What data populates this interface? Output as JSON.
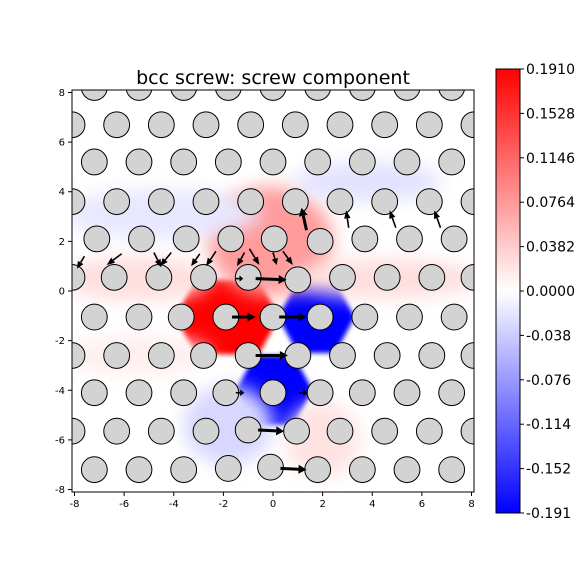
{
  "chart_data": {
    "type": "heatmap",
    "title": "bcc screw: screw component",
    "xlabel": "",
    "ylabel": "",
    "xlim": [
      -8.1,
      8.1
    ],
    "ylim": [
      -8.1,
      8.1
    ],
    "xticks": [
      -8,
      -6,
      -4,
      -2,
      0,
      2,
      4,
      6,
      8
    ],
    "yticks": [
      -8,
      -6,
      -4,
      -2,
      0,
      2,
      4,
      6,
      8
    ],
    "colorbar": {
      "colormap": "bwr",
      "vmin": -0.191,
      "vmax": 0.191,
      "tick_values": [
        0.191,
        0.1528,
        0.1146,
        0.0764,
        0.0382,
        0.0,
        -0.0382,
        -0.0764,
        -0.1146,
        -0.1528,
        -0.191
      ],
      "tick_labels": [
        "0.1910",
        "0.1528",
        "0.1146",
        "0.0764",
        "0.0382",
        "0.0000",
        "-0.038",
        "-0.076",
        "-0.114",
        "-0.152",
        "-0.191"
      ]
    },
    "colors": {
      "positive": "#ff0000",
      "negative": "#0000ff",
      "zero": "#ffffff",
      "atom_fill": "#d3d3d3",
      "atom_edge": "#000000"
    },
    "lattice": {
      "row_spacing": 1.56,
      "col_spacing": 1.8,
      "row_offset": 0.9,
      "atom_radius": 0.52,
      "rows_y": [
        8.2,
        6.7,
        5.2,
        3.6,
        2.1,
        0.55,
        -1.05,
        -2.6,
        -4.1,
        -5.65,
        -7.2
      ]
    },
    "atoms": [
      [
        -7.2,
        8.2
      ],
      [
        -5.4,
        8.2
      ],
      [
        -3.6,
        8.2
      ],
      [
        -1.8,
        8.2
      ],
      [
        0.0,
        8.2
      ],
      [
        1.8,
        8.2
      ],
      [
        3.6,
        8.2
      ],
      [
        5.4,
        8.2
      ],
      [
        7.2,
        8.2
      ],
      [
        -8.1,
        6.7
      ],
      [
        -6.3,
        6.7
      ],
      [
        -4.5,
        6.7
      ],
      [
        -2.7,
        6.7
      ],
      [
        -0.9,
        6.7
      ],
      [
        0.9,
        6.7
      ],
      [
        2.7,
        6.7
      ],
      [
        4.5,
        6.7
      ],
      [
        6.3,
        6.7
      ],
      [
        8.1,
        6.7
      ],
      [
        -7.2,
        5.2
      ],
      [
        -5.4,
        5.2
      ],
      [
        -3.6,
        5.2
      ],
      [
        -1.8,
        5.2
      ],
      [
        0.0,
        5.2
      ],
      [
        1.8,
        5.2
      ],
      [
        3.6,
        5.2
      ],
      [
        5.4,
        5.2
      ],
      [
        7.2,
        5.2
      ],
      [
        -8.1,
        3.6
      ],
      [
        -6.3,
        3.6
      ],
      [
        -4.5,
        3.6
      ],
      [
        -2.7,
        3.6
      ],
      [
        -0.9,
        3.6
      ],
      [
        0.9,
        3.6
      ],
      [
        2.7,
        3.6
      ],
      [
        4.5,
        3.6
      ],
      [
        6.3,
        3.6
      ],
      [
        8.1,
        3.6
      ],
      [
        -7.1,
        2.1
      ],
      [
        -5.3,
        2.1
      ],
      [
        -3.5,
        2.1
      ],
      [
        -1.7,
        2.1
      ],
      [
        0.05,
        2.1
      ],
      [
        1.9,
        2.0
      ],
      [
        3.7,
        2.1
      ],
      [
        5.5,
        2.1
      ],
      [
        7.3,
        2.1
      ],
      [
        -8.1,
        0.55
      ],
      [
        -6.4,
        0.55
      ],
      [
        -4.6,
        0.55
      ],
      [
        -2.8,
        0.55
      ],
      [
        -1.0,
        0.55
      ],
      [
        1.0,
        0.45
      ],
      [
        2.8,
        0.55
      ],
      [
        4.6,
        0.55
      ],
      [
        6.4,
        0.55
      ],
      [
        8.1,
        0.55
      ],
      [
        -7.2,
        -1.05
      ],
      [
        -5.4,
        -1.05
      ],
      [
        -3.7,
        -1.05
      ],
      [
        -1.9,
        -1.05
      ],
      [
        0.0,
        -1.05
      ],
      [
        1.9,
        -1.05
      ],
      [
        3.7,
        -1.05
      ],
      [
        5.5,
        -1.05
      ],
      [
        7.3,
        -1.05
      ],
      [
        -8.1,
        -2.6
      ],
      [
        -6.3,
        -2.6
      ],
      [
        -4.5,
        -2.6
      ],
      [
        -2.8,
        -2.6
      ],
      [
        -1.0,
        -2.6
      ],
      [
        1.0,
        -2.6
      ],
      [
        2.8,
        -2.6
      ],
      [
        4.6,
        -2.6
      ],
      [
        6.4,
        -2.6
      ],
      [
        8.1,
        -2.6
      ],
      [
        -7.2,
        -4.1
      ],
      [
        -5.4,
        -4.1
      ],
      [
        -3.6,
        -4.1
      ],
      [
        -1.9,
        -4.1
      ],
      [
        0.0,
        -4.1
      ],
      [
        1.9,
        -4.1
      ],
      [
        3.6,
        -4.1
      ],
      [
        5.4,
        -4.1
      ],
      [
        7.2,
        -4.1
      ],
      [
        -8.1,
        -5.65
      ],
      [
        -6.3,
        -5.65
      ],
      [
        -4.5,
        -5.65
      ],
      [
        -2.7,
        -5.65
      ],
      [
        -1.0,
        -5.6
      ],
      [
        0.95,
        -5.65
      ],
      [
        2.7,
        -5.65
      ],
      [
        4.5,
        -5.65
      ],
      [
        6.3,
        -5.65
      ],
      [
        8.1,
        -5.65
      ],
      [
        -7.2,
        -7.2
      ],
      [
        -5.4,
        -7.2
      ],
      [
        -3.6,
        -7.2
      ],
      [
        -1.8,
        -7.15
      ],
      [
        -0.1,
        -7.1
      ],
      [
        1.8,
        -7.2
      ],
      [
        3.6,
        -7.2
      ],
      [
        5.4,
        -7.2
      ],
      [
        7.2,
        -7.2
      ]
    ],
    "arrows": [
      {
        "x0": -7.6,
        "y0": 1.4,
        "x1": -7.9,
        "y1": 0.9
      },
      {
        "x0": -6.1,
        "y0": 1.5,
        "x1": -6.7,
        "y1": 1.05
      },
      {
        "x0": -4.8,
        "y0": 1.55,
        "x1": -4.5,
        "y1": 0.95
      },
      {
        "x0": -4.1,
        "y0": 1.55,
        "x1": -4.55,
        "y1": 1.0
      },
      {
        "x0": -2.95,
        "y0": 1.5,
        "x1": -3.3,
        "y1": 1.0
      },
      {
        "x0": -2.3,
        "y0": 1.6,
        "x1": -2.7,
        "y1": 1.0
      },
      {
        "x0": -1.15,
        "y0": 1.55,
        "x1": -1.45,
        "y1": 1.0
      },
      {
        "x0": -0.95,
        "y0": 1.7,
        "x1": -0.55,
        "y1": 1.05
      },
      {
        "x0": 0.0,
        "y0": 1.55,
        "x1": 0.15,
        "y1": 1.05
      },
      {
        "x0": 0.4,
        "y0": 1.6,
        "x1": 0.8,
        "y1": 1.05
      },
      {
        "x0": 1.35,
        "y0": 2.45,
        "x1": 1.15,
        "y1": 3.35
      },
      {
        "x0": 3.05,
        "y0": 2.55,
        "x1": 2.95,
        "y1": 3.25
      },
      {
        "x0": 4.95,
        "y0": 2.55,
        "x1": 4.7,
        "y1": 3.25
      },
      {
        "x0": 6.75,
        "y0": 2.55,
        "x1": 6.5,
        "y1": 3.25
      },
      {
        "x0": -1.5,
        "y0": 0.5,
        "x1": -1.2,
        "y1": 0.5
      },
      {
        "x0": -0.7,
        "y0": 0.5,
        "x1": 0.55,
        "y1": 0.45
      },
      {
        "x0": -1.65,
        "y0": -1.05,
        "x1": -0.7,
        "y1": -1.05
      },
      {
        "x0": 0.25,
        "y0": -1.05,
        "x1": 1.35,
        "y1": -1.05
      },
      {
        "x0": -0.7,
        "y0": -2.6,
        "x1": 0.6,
        "y1": -2.6
      },
      {
        "x0": -1.5,
        "y0": -4.1,
        "x1": -1.15,
        "y1": -4.1
      },
      {
        "x0": 1.05,
        "y0": -4.1,
        "x1": 1.4,
        "y1": -4.1
      },
      {
        "x0": -0.6,
        "y0": -5.6,
        "x1": 0.45,
        "y1": -5.65
      },
      {
        "x0": 0.3,
        "y0": -7.15,
        "x1": 1.35,
        "y1": -7.2
      }
    ],
    "field_regions": [
      {
        "shape": "hex",
        "cx": -1.85,
        "cy": -1.05,
        "hw": 2.1,
        "hh": 1.5,
        "value": 0.191
      },
      {
        "shape": "hex",
        "cx": 1.75,
        "cy": -1.05,
        "hw": 1.55,
        "hh": 1.45,
        "value": -0.191
      },
      {
        "shape": "hex",
        "cx": 0.05,
        "cy": -4.0,
        "hw": 1.55,
        "hh": 1.4,
        "value": -0.191
      },
      {
        "shape": "blob",
        "cx": -0.1,
        "cy": 2.0,
        "rx": 2.5,
        "ry": 2.2,
        "value": 0.075
      },
      {
        "shape": "blob",
        "cx": -5.5,
        "cy": 0.5,
        "rx": 3.0,
        "ry": 0.9,
        "value": 0.025
      },
      {
        "shape": "blob",
        "cx": 4.5,
        "cy": 0.5,
        "rx": 3.8,
        "ry": 0.8,
        "value": 0.025
      },
      {
        "shape": "blob",
        "cx": -4.5,
        "cy": 3.1,
        "rx": 4.0,
        "ry": 1.0,
        "value": -0.018
      },
      {
        "shape": "blob",
        "cx": 3.8,
        "cy": 4.4,
        "rx": 3.0,
        "ry": 0.8,
        "value": -0.022
      },
      {
        "shape": "blob",
        "cx": -1.8,
        "cy": -5.4,
        "rx": 1.8,
        "ry": 1.6,
        "value": -0.03
      },
      {
        "shape": "blob",
        "cx": 2.0,
        "cy": -6.0,
        "rx": 1.5,
        "ry": 1.5,
        "value": 0.022
      },
      {
        "shape": "blob",
        "cx": -5.5,
        "cy": -2.6,
        "rx": 3.0,
        "ry": 0.8,
        "value": 0.012
      }
    ]
  }
}
